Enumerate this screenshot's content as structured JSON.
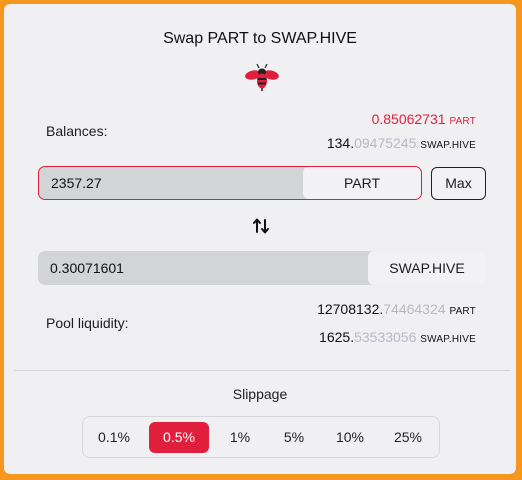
{
  "title": "Swap PART to SWAP.HIVE",
  "logo": "hive-bee-logo",
  "balances": {
    "label": "Balances:",
    "part": {
      "value": "0.85062731",
      "unit": "PART"
    },
    "swap_hive": {
      "int": "134.",
      "frac": "09475245",
      "unit": "SWAP.HIVE"
    }
  },
  "input": {
    "value": "2357.27",
    "token": "PART",
    "max_label": "Max"
  },
  "swap_direction_icon": "swap-vertical-arrows-icon",
  "output": {
    "value": "0.30071601",
    "token": "SWAP.HIVE"
  },
  "pool": {
    "label": "Pool liquidity:",
    "part": {
      "int": "12708132.",
      "frac": "74464324",
      "unit": "PART"
    },
    "swap_hive": {
      "int": "1625.",
      "frac": "53533056",
      "unit": "SWAP.HIVE"
    }
  },
  "slippage": {
    "title": "Slippage",
    "options": [
      "0.1%",
      "0.5%",
      "1%",
      "5%",
      "10%",
      "25%"
    ],
    "selected": "0.5%"
  },
  "colors": {
    "background": "#f6981f",
    "accent": "#e01f3d",
    "panel": "#f0f0f3"
  }
}
